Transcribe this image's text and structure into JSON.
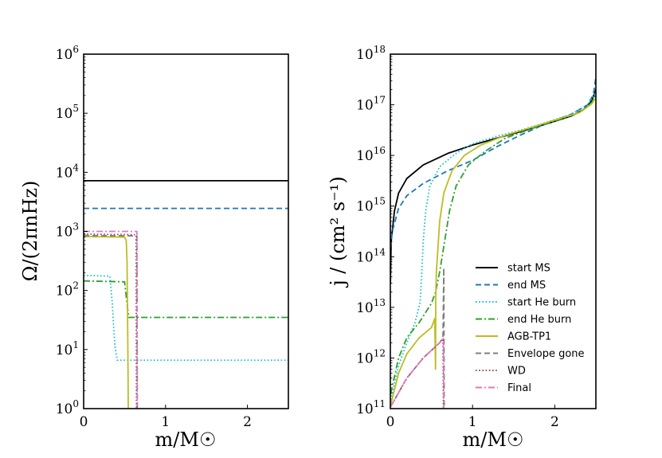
{
  "chart_data": [
    {
      "type": "line",
      "panel": "left",
      "xlabel": "m/M☉",
      "ylabel": "Ω/(2πnHz)",
      "xlim": [
        0,
        2.5
      ],
      "ylim": [
        1,
        1000000
      ],
      "yscale": "log",
      "xticks": [
        {
          "value": 0,
          "label": "0"
        },
        {
          "value": 1,
          "label": "1"
        },
        {
          "value": 2,
          "label": "2"
        }
      ],
      "yticks": [
        {
          "value": 1,
          "base": "10",
          "exp": "0"
        },
        {
          "value": 10,
          "base": "10",
          "exp": "1"
        },
        {
          "value": 100,
          "base": "10",
          "exp": "2"
        },
        {
          "value": 1000,
          "base": "10",
          "exp": "3"
        },
        {
          "value": 10000,
          "base": "10",
          "exp": "4"
        },
        {
          "value": 100000,
          "base": "10",
          "exp": "5"
        },
        {
          "value": 1000000,
          "base": "10",
          "exp": "6"
        }
      ],
      "series": [
        {
          "name": "start MS",
          "color": "#000000",
          "dash": "solid",
          "points": [
            [
              0,
              7200
            ],
            [
              2.5,
              7200
            ]
          ]
        },
        {
          "name": "end MS",
          "color": "#1f77b4",
          "dash": "dashed",
          "points": [
            [
              0,
              2450
            ],
            [
              2.5,
              2450
            ]
          ]
        },
        {
          "name": "start He burn",
          "color": "#17becf",
          "dash": "dotted",
          "points": [
            [
              0,
              180
            ],
            [
              0.32,
              175
            ],
            [
              0.35,
              60
            ],
            [
              0.38,
              12
            ],
            [
              0.41,
              6.6
            ],
            [
              2.5,
              6.6
            ]
          ]
        },
        {
          "name": "end He burn",
          "color": "#2ca02c",
          "dash": "dashdot",
          "points": [
            [
              0,
              145
            ],
            [
              0.5,
              140
            ],
            [
              0.53,
              60
            ],
            [
              0.55,
              35
            ],
            [
              2.5,
              35
            ]
          ]
        },
        {
          "name": "AGB-TP1",
          "color": "#bcbd22",
          "dash": "solid",
          "points": [
            [
              0,
              820
            ],
            [
              0.5,
              800
            ],
            [
              0.52,
              700
            ],
            [
              0.53,
              300
            ],
            [
              0.54,
              10
            ],
            [
              0.545,
              1
            ]
          ]
        },
        {
          "name": "Envelope gone",
          "color": "#7f7f7f",
          "dash": "dashed",
          "points": [
            [
              0,
              850
            ],
            [
              0.62,
              840
            ],
            [
              0.65,
              820
            ],
            [
              0.655,
              1
            ]
          ]
        },
        {
          "name": "WD",
          "color": "#8c564b",
          "dash": "dotted",
          "points": [
            [
              0,
              900
            ],
            [
              0.64,
              880
            ],
            [
              0.645,
              1
            ]
          ]
        },
        {
          "name": "Final",
          "color": "#e377c2",
          "dash": "dashdot",
          "points": [
            [
              0,
              1000
            ],
            [
              0.65,
              1000
            ],
            [
              0.655,
              1
            ]
          ]
        }
      ]
    },
    {
      "type": "line",
      "panel": "right",
      "xlabel": "m/M☉",
      "ylabel": "j / (cm² s⁻¹)",
      "xlim": [
        0,
        2.5
      ],
      "ylim": [
        100000000000,
        1000000000000000000
      ],
      "yscale": "log",
      "xticks": [
        {
          "value": 0,
          "label": "0"
        },
        {
          "value": 1,
          "label": "1"
        },
        {
          "value": 2,
          "label": "2"
        }
      ],
      "yticks": [
        {
          "value": 100000000000,
          "base": "10",
          "exp": "11"
        },
        {
          "value": 1000000000000,
          "base": "10",
          "exp": "12"
        },
        {
          "value": 10000000000000,
          "base": "10",
          "exp": "13"
        },
        {
          "value": 100000000000000,
          "base": "10",
          "exp": "14"
        },
        {
          "value": 1000000000000000,
          "base": "10",
          "exp": "15"
        },
        {
          "value": 10000000000000000,
          "base": "10",
          "exp": "16"
        },
        {
          "value": 100000000000000000,
          "base": "10",
          "exp": "17"
        },
        {
          "value": 1000000000000000000,
          "base": "10",
          "exp": "18"
        }
      ],
      "series": [
        {
          "name": "start MS",
          "color": "#000000",
          "dash": "solid",
          "points": [
            [
              0.001,
              30000000000000.0
            ],
            [
              0.01,
              200000000000000.0
            ],
            [
              0.05,
              800000000000000.0
            ],
            [
              0.1,
              1800000000000000.0
            ],
            [
              0.2,
              3500000000000000.0
            ],
            [
              0.4,
              6500000000000000.0
            ],
            [
              0.7,
              1.1e+16
            ],
            [
              1.0,
              1.6e+16
            ],
            [
              1.3,
              2.2e+16
            ],
            [
              1.6,
              3e+16
            ],
            [
              1.9,
              4.2e+16
            ],
            [
              2.2,
              6e+16
            ],
            [
              2.35,
              8e+16
            ],
            [
              2.45,
              1.2e+17
            ],
            [
              2.5,
              2e+17
            ]
          ]
        },
        {
          "name": "end MS",
          "color": "#1f77b4",
          "dash": "dashed",
          "points": [
            [
              0.001,
              150000000000000.0
            ],
            [
              0.02,
              300000000000000.0
            ],
            [
              0.1,
              900000000000000.0
            ],
            [
              0.2,
              1600000000000000.0
            ],
            [
              0.4,
              2800000000000000.0
            ],
            [
              0.7,
              5000000000000000.0
            ],
            [
              1.0,
              8000000000000000.0
            ],
            [
              1.3,
              1.5e+16
            ],
            [
              1.6,
              2.6e+16
            ],
            [
              1.9,
              4.3e+16
            ],
            [
              2.2,
              6.5e+16
            ],
            [
              2.4,
              1e+17
            ],
            [
              2.47,
              1.6e+17
            ],
            [
              2.5,
              3.5e+17
            ]
          ]
        },
        {
          "name": "start He burn",
          "color": "#17becf",
          "dash": "dotted",
          "points": [
            [
              0.005,
              150000000000.0
            ],
            [
              0.1,
              700000000000.0
            ],
            [
              0.2,
              2000000000000.0
            ],
            [
              0.3,
              5000000000000.0
            ],
            [
              0.36,
              12000000000000.0
            ],
            [
              0.38,
              40000000000000.0
            ],
            [
              0.4,
              200000000000000.0
            ],
            [
              0.43,
              800000000000000.0
            ],
            [
              0.48,
              2500000000000000.0
            ],
            [
              0.6,
              6000000000000000.0
            ],
            [
              0.8,
              1.1e+16
            ],
            [
              1.0,
              1.7e+16
            ],
            [
              1.3,
              2.4e+16
            ],
            [
              1.6,
              3.2e+16
            ],
            [
              1.9,
              4.5e+16
            ],
            [
              2.2,
              6.5e+16
            ],
            [
              2.4,
              1e+17
            ],
            [
              2.5,
              1.8e+17
            ]
          ]
        },
        {
          "name": "end He burn",
          "color": "#2ca02c",
          "dash": "dashdot",
          "points": [
            [
              0.005,
              200000000000.0
            ],
            [
              0.1,
              1000000000000.0
            ],
            [
              0.2,
              2500000000000.0
            ],
            [
              0.35,
              5000000000000.0
            ],
            [
              0.5,
              12000000000000.0
            ],
            [
              0.55,
              20000000000000.0
            ],
            [
              0.6,
              50000000000000.0
            ],
            [
              0.66,
              200000000000000.0
            ],
            [
              0.72,
              800000000000000.0
            ],
            [
              0.8,
              2500000000000000.0
            ],
            [
              0.95,
              6500000000000000.0
            ],
            [
              1.15,
              1.2e+16
            ],
            [
              1.4,
              2.2e+16
            ],
            [
              1.7,
              3.3e+16
            ],
            [
              2.0,
              4.8e+16
            ],
            [
              2.3,
              7e+16
            ],
            [
              2.45,
              1.1e+17
            ],
            [
              2.5,
              1.6e+17
            ]
          ]
        },
        {
          "name": "AGB-TP1",
          "color": "#bcbd22",
          "dash": "solid",
          "points": [
            [
              0.005,
              120000000000.0
            ],
            [
              0.1,
              500000000000.0
            ],
            [
              0.2,
              1200000000000.0
            ],
            [
              0.35,
              2500000000000.0
            ],
            [
              0.5,
              4000000000000.0
            ],
            [
              0.54,
              6000000000000.0
            ],
            [
              0.545,
              2000000000000.0
            ],
            [
              0.55,
              600000000000.0
            ],
            [
              0.552,
              15000000000000.0
            ],
            [
              0.56,
              50000000000000.0
            ],
            [
              0.6,
              500000000000000.0
            ],
            [
              0.65,
              1800000000000000.0
            ],
            [
              0.75,
              5000000000000000.0
            ],
            [
              0.9,
              1e+16
            ],
            [
              1.1,
              1.6e+16
            ],
            [
              1.4,
              2.5e+16
            ],
            [
              1.7,
              3.5e+16
            ],
            [
              2.0,
              5e+16
            ],
            [
              2.3,
              7e+16
            ],
            [
              2.45,
              1.05e+17
            ],
            [
              2.5,
              1.4e+17
            ]
          ]
        },
        {
          "name": "Envelope gone",
          "color": "#7f7f7f",
          "dash": "dashed",
          "points": [
            [
              0.005,
              110000000000.0
            ],
            [
              0.2,
              400000000000.0
            ],
            [
              0.4,
              1000000000000.0
            ],
            [
              0.6,
              2000000000000.0
            ],
            [
              0.64,
              2500000000000.0
            ],
            [
              0.65,
              60000000000000.0
            ],
            [
              0.655,
              100000000000.0
            ]
          ]
        },
        {
          "name": "WD",
          "color": "#8c564b",
          "dash": "dotted",
          "points": [
            [
              0.005,
              110000000000.0
            ],
            [
              0.2,
              400000000000.0
            ],
            [
              0.4,
              1000000000000.0
            ],
            [
              0.6,
              2000000000000.0
            ],
            [
              0.64,
              2400000000000.0
            ],
            [
              0.645,
              100000000000.0
            ]
          ]
        },
        {
          "name": "Final",
          "color": "#e377c2",
          "dash": "dashdot",
          "points": [
            [
              0.005,
              110000000000.0
            ],
            [
              0.2,
              400000000000.0
            ],
            [
              0.4,
              1000000000000.0
            ],
            [
              0.6,
              2000000000000.0
            ],
            [
              0.645,
              2400000000000.0
            ],
            [
              0.65,
              100000000000.0
            ]
          ]
        }
      ],
      "legend": {
        "placement": "lower-right",
        "entries": [
          {
            "label": "start MS",
            "color": "#000000",
            "dash": "solid"
          },
          {
            "label": "end MS",
            "color": "#1f77b4",
            "dash": "dashed"
          },
          {
            "label": "start He burn",
            "color": "#17becf",
            "dash": "dotted"
          },
          {
            "label": "end He burn",
            "color": "#2ca02c",
            "dash": "dashdot"
          },
          {
            "label": "AGB-TP1",
            "color": "#bcbd22",
            "dash": "solid"
          },
          {
            "label": "Envelope gone",
            "color": "#7f7f7f",
            "dash": "dashed"
          },
          {
            "label": "WD",
            "color": "#8c564b",
            "dash": "dotted"
          },
          {
            "label": "Final",
            "color": "#e377c2",
            "dash": "dashdot"
          }
        ]
      }
    }
  ]
}
